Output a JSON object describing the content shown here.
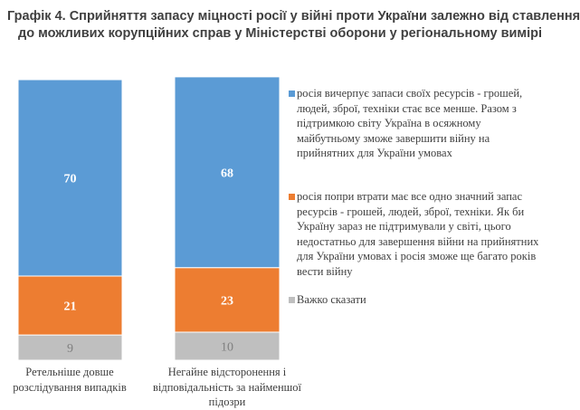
{
  "title": {
    "line1": "Графік 4. Сприйняття запасу міцності росії у війні проти України залежно від ставлення",
    "line2": "до можливих корупційних справ у Міністерстві оборони у регіональному вимірі"
  },
  "chart_data": {
    "type": "bar",
    "stacked": true,
    "title": "Графік 4. Сприйняття запасу міцності росії у війні проти України залежно від ставлення до можливих корупційних справ у Міністерстві оборони у регіональному вимірі",
    "categories": [
      "Ретельніше довше розслідування випадків",
      "Негайне відсторонення і відповідальність за найменшої підозри"
    ],
    "series": [
      {
        "name": "росія вичерпує запаси своїх ресурсів - грошей, людей, зброї, техніки стає все менше. Разом з підтримкою світу Україна в осяжному майбутньому зможе завершити війну на прийнятних для України умовах",
        "color": "#5b9bd5",
        "values": [
          70,
          68
        ]
      },
      {
        "name": "росія попри втрати має все одно значний запас ресурсів - грошей, людей, зброї, техніки. Як би Україну зараз не підтримували у світі, цього недостатньо для завершення війни на прийнятних для України умовах і росія зможе ще багато років вести війну",
        "color": "#ed7d31",
        "values": [
          21,
          23
        ]
      },
      {
        "name": "Важко сказати",
        "color": "#bfbfbf",
        "values": [
          9,
          10
        ]
      }
    ],
    "xlabel": "",
    "ylabel": "",
    "ylim": [
      0,
      100
    ],
    "grid": false,
    "legend_position": "right"
  }
}
